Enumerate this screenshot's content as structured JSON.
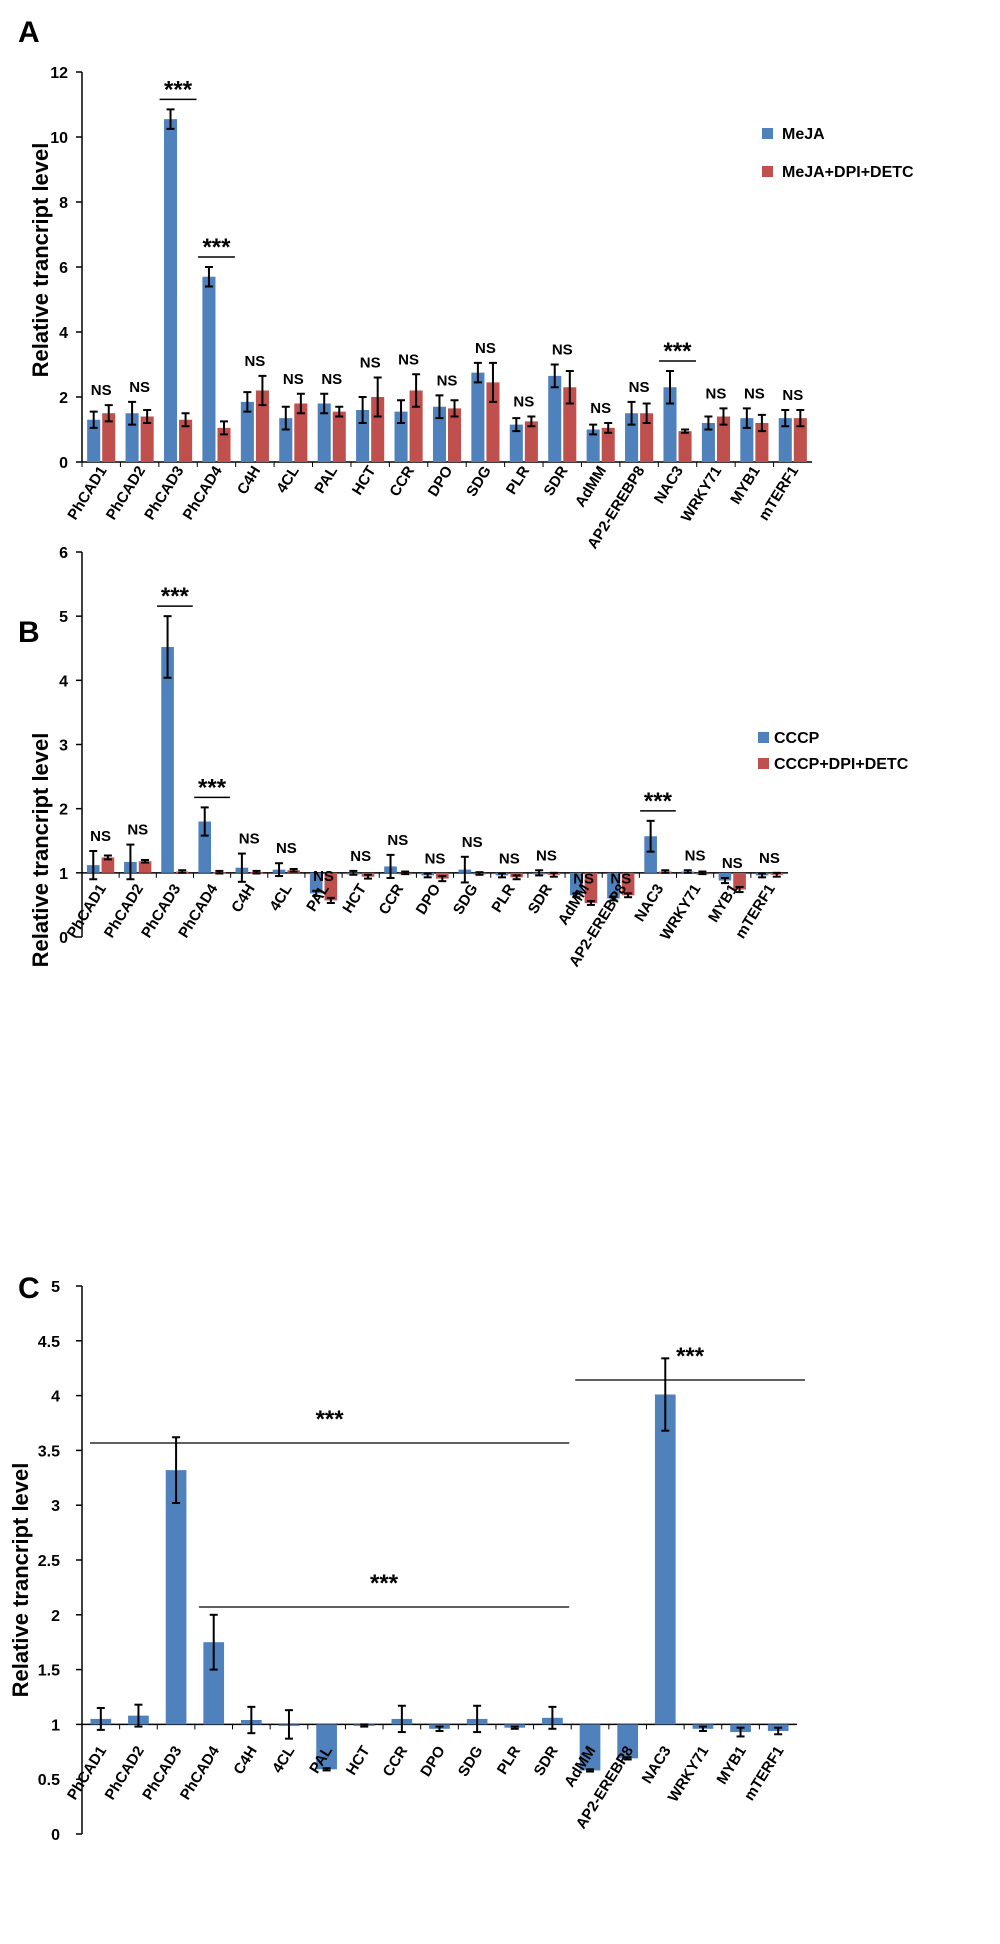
{
  "figure": {
    "colors": {
      "blue": "#4f81bd",
      "red": "#c0504d",
      "black": "#000000"
    }
  },
  "chart_data": [
    {
      "panel": "A",
      "type": "bar",
      "ylabel": "Relative trancript level",
      "ylim": [
        0,
        12
      ],
      "yticks": [
        0,
        2,
        4,
        6,
        8,
        10,
        12
      ],
      "baseline": 0,
      "categories": [
        "PhCAD1",
        "PhCAD2",
        "PhCAD3",
        "PhCAD4",
        "C4H",
        "4CL",
        "PAL",
        "HCT",
        "CCR",
        "DPO",
        "SDG",
        "PLR",
        "SDR",
        "AdMM",
        "AP2-EREBP8",
        "NAC3",
        "WRKY71",
        "MYB1",
        "mTERF1"
      ],
      "series": [
        {
          "name": "MeJA",
          "color": "#4f81bd",
          "values": [
            1.3,
            1.5,
            10.55,
            5.7,
            1.85,
            1.35,
            1.8,
            1.6,
            1.55,
            1.7,
            2.75,
            1.15,
            2.65,
            1.0,
            1.5,
            2.3,
            1.2,
            1.35,
            1.35
          ],
          "errors": [
            0.25,
            0.35,
            0.3,
            0.3,
            0.3,
            0.35,
            0.3,
            0.4,
            0.35,
            0.35,
            0.3,
            0.2,
            0.35,
            0.15,
            0.35,
            0.5,
            0.2,
            0.3,
            0.25
          ]
        },
        {
          "name": "MeJA+DPI+DETC",
          "color": "#c0504d",
          "values": [
            1.5,
            1.4,
            1.3,
            1.05,
            2.2,
            1.8,
            1.55,
            2.0,
            2.2,
            1.65,
            2.45,
            1.25,
            2.3,
            1.05,
            1.5,
            0.95,
            1.4,
            1.2,
            1.35
          ],
          "errors": [
            0.25,
            0.2,
            0.2,
            0.2,
            0.45,
            0.3,
            0.15,
            0.6,
            0.5,
            0.25,
            0.6,
            0.15,
            0.5,
            0.15,
            0.3,
            0.05,
            0.25,
            0.25,
            0.25
          ]
        }
      ],
      "annotations": [
        "NS",
        "NS",
        "***",
        "***",
        "NS",
        "NS",
        "NS",
        "NS",
        "NS",
        "NS",
        "NS",
        "NS",
        "NS",
        "NS",
        "NS",
        "***",
        "NS",
        "NS",
        "NS"
      ],
      "legend_position": "top-right"
    },
    {
      "panel": "B",
      "type": "bar",
      "ylabel": "Relative trancript level",
      "ylim": [
        0,
        6
      ],
      "yticks": [
        0,
        1,
        2,
        3,
        4,
        5,
        6
      ],
      "baseline": 1,
      "categories": [
        "PhCAD1",
        "PhCAD2",
        "PhCAD3",
        "PhCAD4",
        "C4H",
        "4CL",
        "PAL",
        "HCT",
        "CCR",
        "DPO",
        "SDG",
        "PLR",
        "SDR",
        "AdMM",
        "AP2-EREBP8",
        "NAC3",
        "WRKY71",
        "MYB1",
        "mTERF1"
      ],
      "series": [
        {
          "name": "CCCP",
          "color": "#4f81bd",
          "values": [
            1.12,
            1.17,
            4.52,
            1.8,
            1.08,
            1.05,
            0.68,
            1.0,
            1.1,
            0.96,
            1.05,
            0.96,
            1.0,
            0.65,
            0.6,
            1.57,
            1.02,
            0.88,
            0.96
          ],
          "errors": [
            0.22,
            0.27,
            0.48,
            0.22,
            0.22,
            0.1,
            0.04,
            0.03,
            0.18,
            0.03,
            0.2,
            0.03,
            0.04,
            0.03,
            0.03,
            0.24,
            0.02,
            0.04,
            0.03
          ]
        },
        {
          "name": "CCCP+DPI+DETC",
          "color": "#c0504d",
          "values": [
            1.24,
            1.18,
            1.02,
            1.01,
            1.01,
            1.04,
            0.57,
            0.94,
            1.0,
            0.91,
            0.99,
            0.93,
            0.97,
            0.53,
            0.65,
            1.02,
            1.0,
            0.74,
            0.97
          ],
          "errors": [
            0.03,
            0.02,
            0.02,
            0.02,
            0.02,
            0.02,
            0.04,
            0.03,
            0.02,
            0.04,
            0.02,
            0.03,
            0.03,
            0.03,
            0.03,
            0.02,
            0.02,
            0.04,
            0.03
          ]
        }
      ],
      "annotations": [
        "NS",
        "NS",
        "***",
        "***",
        "NS",
        "NS",
        "NS",
        "NS",
        "NS",
        "NS",
        "NS",
        "NS",
        "NS",
        "NS",
        "NS",
        "***",
        "NS",
        "NS",
        "NS"
      ],
      "legend_position": "top-right"
    },
    {
      "panel": "C",
      "type": "bar",
      "ylabel": "Relative trancript level",
      "ylim": [
        0,
        5
      ],
      "yticks": [
        0,
        0.5,
        1,
        1.5,
        2,
        2.5,
        3,
        3.5,
        4,
        4.5,
        5
      ],
      "baseline": 1,
      "categories": [
        "PhCAD1",
        "PhCAD2",
        "PhCAD3",
        "PhCAD4",
        "C4H",
        "4CL",
        "PAL",
        "HCT",
        "CCR",
        "DPO",
        "SDG",
        "PLR",
        "SDR",
        "AdMM",
        "AP2-EREBP8",
        "NAC3",
        "WRKY71",
        "MYB1",
        "mTERF1"
      ],
      "series": [
        {
          "name": "",
          "color": "#4f81bd",
          "values": [
            1.05,
            1.08,
            3.32,
            1.75,
            1.04,
            1.0,
            0.59,
            0.99,
            1.05,
            0.96,
            1.05,
            0.97,
            1.06,
            0.58,
            0.69,
            4.01,
            0.96,
            0.93,
            0.94
          ],
          "errors": [
            0.1,
            0.1,
            0.3,
            0.25,
            0.12,
            0.13,
            0.01,
            0.01,
            0.12,
            0.02,
            0.12,
            0.01,
            0.1,
            0.01,
            0.01,
            0.33,
            0.02,
            0.04,
            0.03
          ]
        }
      ],
      "group_annotations": [
        {
          "label": "***",
          "from": "PhCAD1",
          "to": "SDR"
        },
        {
          "label": "***",
          "from": "PhCAD4",
          "to": "SDR"
        },
        {
          "label": "***",
          "from": "AdMM",
          "to": "mTERF1"
        }
      ]
    }
  ]
}
